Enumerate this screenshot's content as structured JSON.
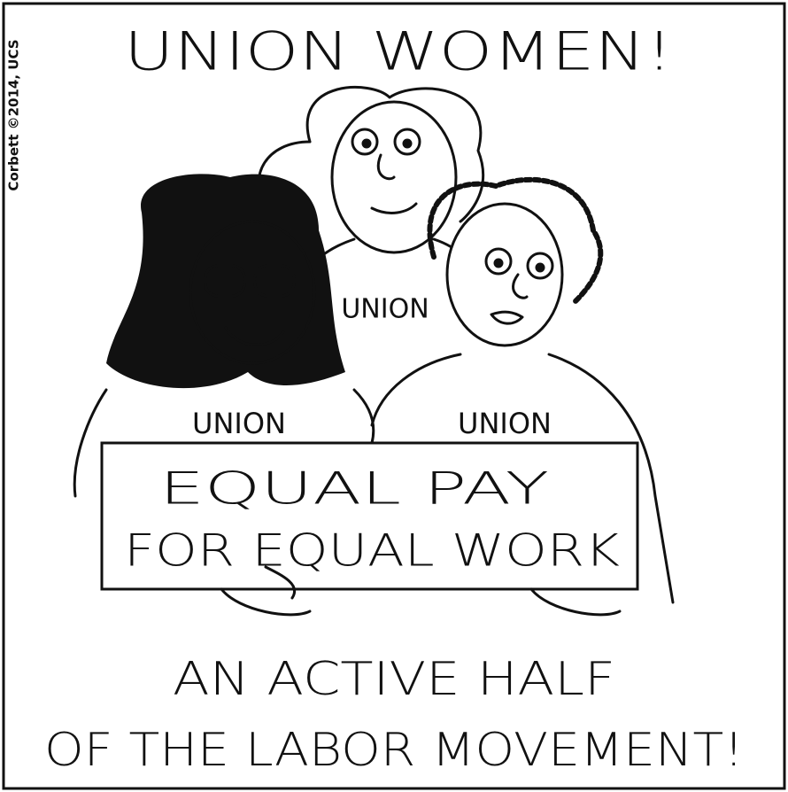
{
  "credit": "Corbett ©2014, UCS",
  "title": "UNION WOMEN!",
  "shirts": [
    "UNION",
    "UNION",
    "UNION"
  ],
  "sign": {
    "line1": "EQUAL PAY",
    "line2": "FOR EQUAL WORK"
  },
  "caption": {
    "line1": "AN ACTIVE HALF",
    "line2": "OF THE LABOR MOVEMENT!"
  }
}
